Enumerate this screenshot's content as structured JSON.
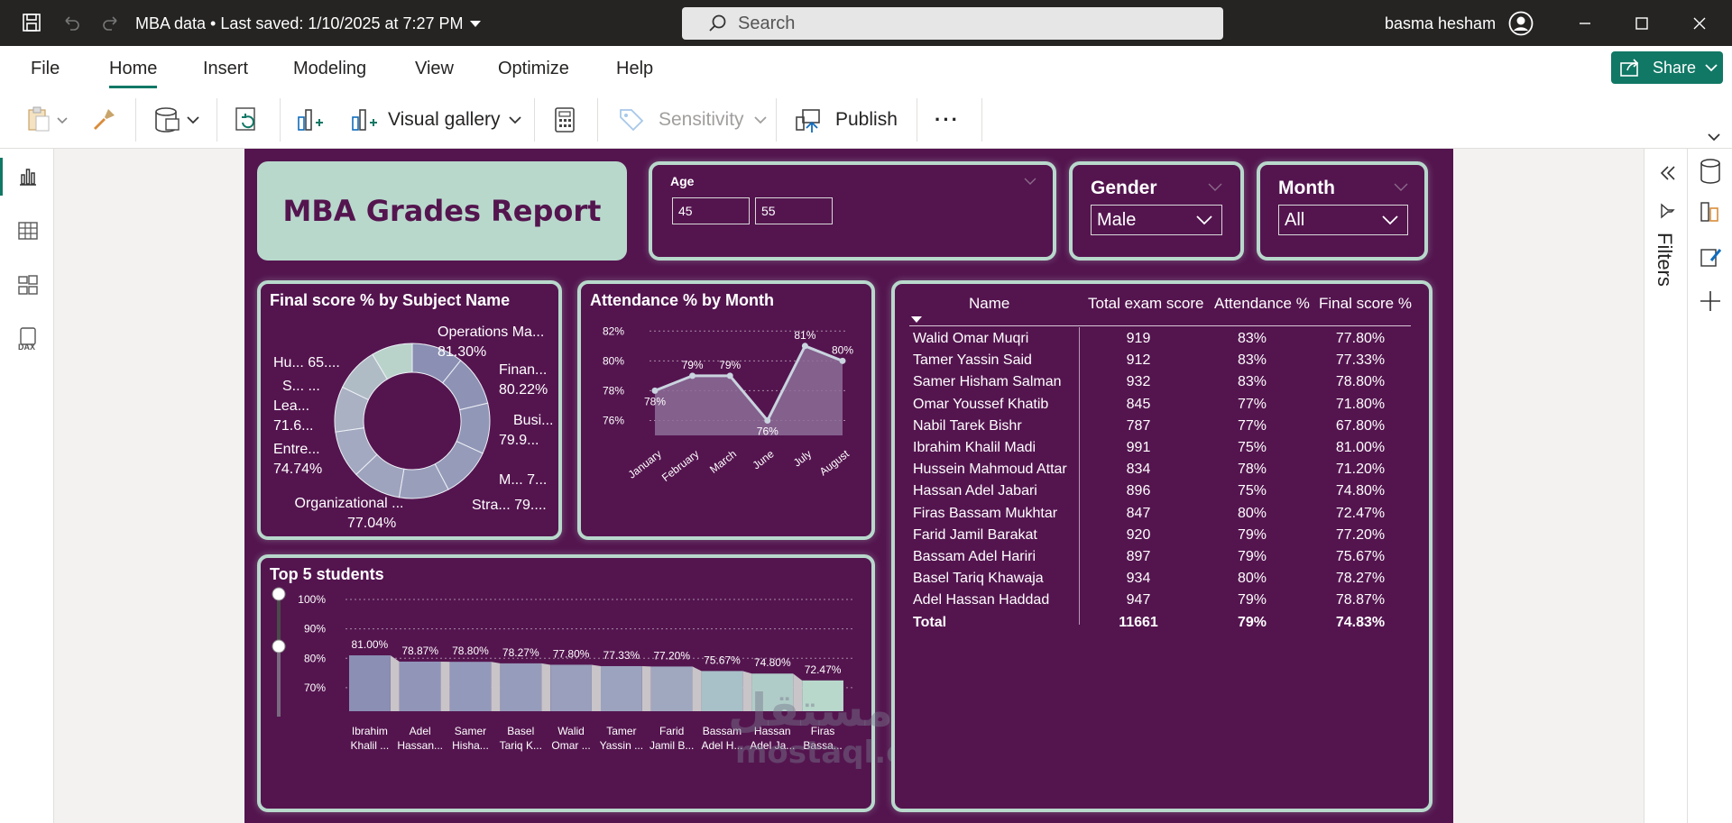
{
  "titlebar": {
    "doc_title": "MBA data • Last saved: 1/10/2025 at 7:27 PM",
    "search_placeholder": "Search",
    "user_name": "basma hesham"
  },
  "menu": {
    "items": [
      "File",
      "Home",
      "Insert",
      "Modeling",
      "View",
      "Optimize",
      "Help"
    ],
    "active": "Home",
    "share_label": "Share"
  },
  "toolbar": {
    "visual_gallery": "Visual gallery",
    "sensitivity": "Sensitivity",
    "publish": "Publish",
    "more": "···"
  },
  "filters": {
    "label": "Filters"
  },
  "report": {
    "title": "MBA Grades Report",
    "age_slicer": {
      "label": "Age",
      "min": "45",
      "max": "55"
    },
    "gender_slicer": {
      "label": "Gender",
      "value": "Male"
    },
    "month_slicer": {
      "label": "Month",
      "value": "All"
    },
    "colors": {
      "background": "#54154f",
      "accent": "#b8d8cc",
      "bar": "#8f94b8"
    },
    "watermark": {
      "arabic": "مستقل",
      "latin": "mostaql.com"
    }
  },
  "donut": {
    "title": "Final score % by Subject Name",
    "labels": [
      {
        "line1": "Operations Ma...",
        "line2": "81.30%"
      },
      {
        "line1": "Finan...",
        "line2": "80.22%"
      },
      {
        "line1": "Busi...",
        "line2": "79.9..."
      },
      {
        "line1": "M... 7...",
        "line2": ""
      },
      {
        "line1": "Stra... 79....",
        "line2": ""
      },
      {
        "line1": "Organizational ...",
        "line2": "77.04%"
      },
      {
        "line1": "Entre...",
        "line2": "74.74%"
      },
      {
        "line1": "Lea...",
        "line2": "71.6..."
      },
      {
        "line1": "S... ...",
        "line2": ""
      },
      {
        "line1": "Hu... 65....",
        "line2": ""
      }
    ]
  },
  "chart_data": [
    {
      "type": "pie",
      "title": "Final score % by Subject Name",
      "categories": [
        "Operations Ma...",
        "Finan...",
        "Busi...",
        "M...",
        "Stra...",
        "Organizational ...",
        "Entre...",
        "Lea...",
        "S...",
        "Hu..."
      ],
      "values": [
        81.3,
        80.22,
        79.9,
        79.0,
        79.0,
        77.04,
        74.74,
        71.6,
        70.0,
        65.0
      ],
      "donut": true
    },
    {
      "type": "area",
      "title": "Attendance % by Month",
      "categories": [
        "January",
        "February",
        "March",
        "June",
        "July",
        "August"
      ],
      "values": [
        78,
        79,
        79,
        76,
        81,
        80
      ],
      "value_labels": [
        "78%",
        "79%",
        "79%",
        "76%",
        "81%",
        "80%"
      ],
      "y_ticks": [
        "82%",
        "80%",
        "78%",
        "76%"
      ],
      "ylim": [
        75,
        82.5
      ],
      "grid": true
    },
    {
      "type": "bar",
      "title": "Top 5 students",
      "categories": [
        "Ibrahim Khalil ...",
        "Adel Hassan...",
        "Samer Hisha...",
        "Basel Tariq K...",
        "Walid Omar ...",
        "Tamer Yassin ...",
        "Farid Jamil B...",
        "Bassam Adel H...",
        "Hassan Adel Ja...",
        "Firas Bassa..."
      ],
      "values": [
        81.0,
        78.87,
        78.8,
        78.27,
        77.8,
        77.33,
        77.2,
        75.67,
        74.8,
        72.47
      ],
      "value_labels": [
        "81.00%",
        "78.87%",
        "78.80%",
        "78.27%",
        "77.80%",
        "77.33%",
        "77.20%",
        "75.67%",
        "74.80%",
        "72.47%"
      ],
      "y_ticks": [
        "100%",
        "90%",
        "80%",
        "70%"
      ],
      "ylim": [
        62,
        100
      ],
      "grid": true
    }
  ],
  "table": {
    "headers": [
      "Name",
      "Total exam score",
      "Attendance %",
      "Final score %"
    ],
    "rows": [
      [
        "Walid Omar Muqri",
        "919",
        "83%",
        "77.80%"
      ],
      [
        "Tamer Yassin Said",
        "912",
        "83%",
        "77.33%"
      ],
      [
        "Samer Hisham Salman",
        "932",
        "83%",
        "78.80%"
      ],
      [
        "Omar Youssef Khatib",
        "845",
        "77%",
        "71.80%"
      ],
      [
        "Nabil Tarek Bishr",
        "787",
        "77%",
        "67.80%"
      ],
      [
        "Ibrahim Khalil Madi",
        "991",
        "75%",
        "81.00%"
      ],
      [
        "Hussein Mahmoud Attar",
        "834",
        "78%",
        "71.20%"
      ],
      [
        "Hassan Adel Jabari",
        "896",
        "75%",
        "74.80%"
      ],
      [
        "Firas Bassam Mukhtar",
        "847",
        "80%",
        "72.47%"
      ],
      [
        "Farid Jamil Barakat",
        "920",
        "79%",
        "77.20%"
      ],
      [
        "Bassam Adel Hariri",
        "897",
        "79%",
        "75.67%"
      ],
      [
        "Basel Tariq Khawaja",
        "934",
        "80%",
        "78.27%"
      ],
      [
        "Adel Hassan Haddad",
        "947",
        "79%",
        "78.87%"
      ]
    ],
    "total": [
      "Total",
      "11661",
      "79%",
      "74.83%"
    ]
  }
}
